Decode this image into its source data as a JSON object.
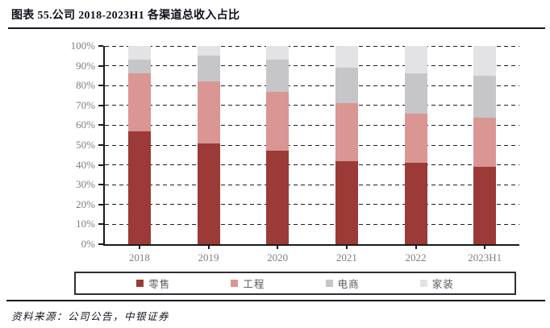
{
  "header": {
    "title": "图表 55.公司 2018-2023H1 各渠道总收入占比"
  },
  "chart_data": {
    "type": "bar",
    "stacking": "percent",
    "title": "图表 55.公司 2018-2023H1 各渠道总收入占比",
    "categories": [
      "2018",
      "2019",
      "2020",
      "2021",
      "2022",
      "2023H1"
    ],
    "series": [
      {
        "key": "retail",
        "name": "零售",
        "color": "#9B3A37",
        "values": [
          57,
          51,
          47,
          42,
          41,
          39
        ]
      },
      {
        "key": "engineering",
        "name": "工程",
        "color": "#D99693",
        "values": [
          29,
          31,
          30,
          29,
          25,
          25
        ]
      },
      {
        "key": "ecommerce",
        "name": "电商",
        "color": "#C6C6C9",
        "values": [
          7,
          13,
          16,
          18,
          20,
          21
        ]
      },
      {
        "key": "home-decor",
        "name": "家装",
        "color": "#E3E3E5",
        "values": [
          7,
          5,
          7,
          11,
          14,
          15
        ]
      }
    ],
    "xlabel": "",
    "ylabel": "",
    "ylim": [
      0,
      100
    ],
    "ytick_step": 10,
    "ytick_suffix": "%",
    "grid": "horizontal-dashed",
    "legend_position": "bottom-boxed"
  },
  "footer": {
    "source": "资料来源：公司公告，中银证券"
  },
  "colors": {
    "axis": "#1a1a1a",
    "gridline": "#1f1f1f",
    "tick_label": "#7f7f7f",
    "legend_text": "#595959",
    "title_text": "#10101a",
    "rule": "#171720"
  }
}
